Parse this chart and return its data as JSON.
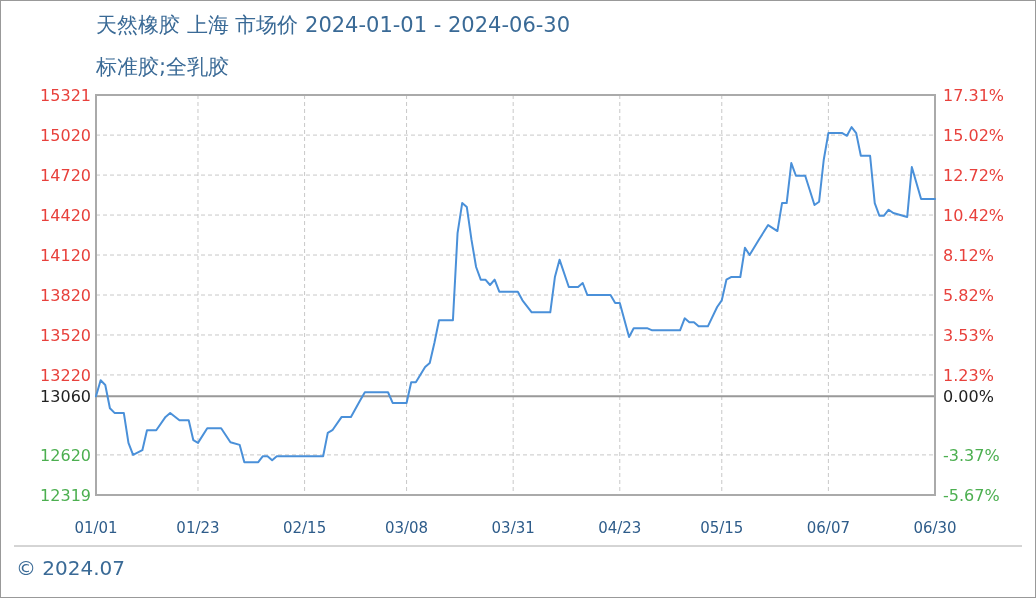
{
  "chart_data": {
    "type": "line",
    "title": "天然橡胶 上海 市场价 2024-01-01 - 2024-06-30",
    "subtitle": "标准胶;全乳胶",
    "annotations": [
      "© 2024.07"
    ],
    "x": [
      "2024-01-01",
      "2024-01-02",
      "2024-01-03",
      "2024-01-04",
      "2024-01-05",
      "2024-01-07",
      "2024-01-08",
      "2024-01-09",
      "2024-01-11",
      "2024-01-12",
      "2024-01-14",
      "2024-01-16",
      "2024-01-17",
      "2024-01-19",
      "2024-01-21",
      "2024-01-22",
      "2024-01-23",
      "2024-01-25",
      "2024-01-28",
      "2024-01-30",
      "2024-02-01",
      "2024-02-02",
      "2024-02-05",
      "2024-02-06",
      "2024-02-07",
      "2024-02-08",
      "2024-02-09",
      "2024-02-19",
      "2024-02-20",
      "2024-02-21",
      "2024-02-23",
      "2024-02-25",
      "2024-02-27",
      "2024-02-28",
      "2024-03-04",
      "2024-03-05",
      "2024-03-08",
      "2024-03-09",
      "2024-03-10",
      "2024-03-12",
      "2024-03-13",
      "2024-03-14",
      "2024-03-15",
      "2024-03-18",
      "2024-03-19",
      "2024-03-20",
      "2024-03-21",
      "2024-03-22",
      "2024-03-23",
      "2024-03-24",
      "2024-03-25",
      "2024-03-26",
      "2024-03-27",
      "2024-03-28",
      "2024-04-01",
      "2024-04-02",
      "2024-04-04",
      "2024-04-08",
      "2024-04-09",
      "2024-04-10",
      "2024-04-12",
      "2024-04-14",
      "2024-04-15",
      "2024-04-16",
      "2024-04-21",
      "2024-04-22",
      "2024-04-23",
      "2024-04-25",
      "2024-04-26",
      "2024-04-29",
      "2024-04-30",
      "2024-05-06",
      "2024-05-07",
      "2024-05-08",
      "2024-05-09",
      "2024-05-10",
      "2024-05-12",
      "2024-05-14",
      "2024-05-15",
      "2024-05-16",
      "2024-05-17",
      "2024-05-19",
      "2024-05-20",
      "2024-05-21",
      "2024-05-23",
      "2024-05-25",
      "2024-05-27",
      "2024-05-28",
      "2024-05-29",
      "2024-05-30",
      "2024-05-31",
      "2024-06-02",
      "2024-06-04",
      "2024-06-05",
      "2024-06-06",
      "2024-06-07",
      "2024-06-10",
      "2024-06-11",
      "2024-06-12",
      "2024-06-13",
      "2024-06-14",
      "2024-06-16",
      "2024-06-17",
      "2024-06-18",
      "2024-06-19",
      "2024-06-20",
      "2024-06-21",
      "2024-06-24",
      "2024-06-25",
      "2024-06-26",
      "2024-06-27",
      "2024-06-30"
    ],
    "series": [
      {
        "color": "#4a90d9",
        "values": [
          13060,
          13180,
          13145,
          12970,
          12935,
          12935,
          12710,
          12620,
          12655,
          12805,
          12805,
          12905,
          12935,
          12880,
          12880,
          12730,
          12710,
          12820,
          12820,
          12715,
          12695,
          12565,
          12565,
          12610,
          12610,
          12580,
          12610,
          12610,
          12785,
          12805,
          12905,
          12905,
          13030,
          13090,
          13090,
          13010,
          13010,
          13165,
          13165,
          13280,
          13310,
          13460,
          13630,
          13630,
          14285,
          14510,
          14480,
          14235,
          14030,
          13935,
          13935,
          13895,
          13935,
          13845,
          13845,
          13780,
          13690,
          13690,
          13955,
          14085,
          13880,
          13880,
          13910,
          13820,
          13820,
          13760,
          13760,
          13505,
          13570,
          13570,
          13555,
          13555,
          13645,
          13615,
          13615,
          13585,
          13585,
          13730,
          13780,
          13935,
          13955,
          13955,
          14175,
          14120,
          14235,
          14345,
          14300,
          14510,
          14510,
          14810,
          14715,
          14715,
          14495,
          14520,
          14835,
          15035,
          15035,
          15015,
          15080,
          15035,
          14865,
          14865,
          14510,
          14415,
          14415,
          14460,
          14435,
          14405,
          14780,
          14660,
          14540,
          14540
        ]
      }
    ],
    "xlim": [
      "2024-01-01",
      "2024-06-30"
    ],
    "xticks": [
      {
        "value": "2024-01-01",
        "label": "01/01"
      },
      {
        "value": "2024-01-23",
        "label": "01/23"
      },
      {
        "value": "2024-02-15",
        "label": "02/15"
      },
      {
        "value": "2024-03-08",
        "label": "03/08"
      },
      {
        "value": "2024-03-31",
        "label": "03/31"
      },
      {
        "value": "2024-04-23",
        "label": "04/23"
      },
      {
        "value": "2024-05-15",
        "label": "05/15"
      },
      {
        "value": "2024-06-07",
        "label": "06/07"
      },
      {
        "value": "2024-06-30",
        "label": "06/30"
      }
    ],
    "ylim": [
      12319,
      15321
    ],
    "yticks": [
      15321,
      15020,
      14720,
      14420,
      14120,
      13820,
      13520,
      13220,
      13060,
      12620,
      12319
    ],
    "y2lim": [
      -5.67,
      17.31
    ],
    "y2ticks": [
      {
        "value": 17.31,
        "label": "17.31%"
      },
      {
        "value": 15.02,
        "label": "15.02%"
      },
      {
        "value": 12.72,
        "label": "12.72%"
      },
      {
        "value": 10.42,
        "label": "10.42%"
      },
      {
        "value": 8.12,
        "label": "8.12%"
      },
      {
        "value": 5.82,
        "label": "5.82%"
      },
      {
        "value": 3.53,
        "label": "3.53%"
      },
      {
        "value": 1.23,
        "label": "1.23%"
      },
      {
        "value": 0,
        "label": "0.00%"
      },
      {
        "value": -3.37,
        "label": "-3.37%"
      },
      {
        "value": -5.67,
        "label": "-5.67%"
      }
    ],
    "grid": true,
    "ref_lines": [
      {
        "axis": "y",
        "value": 13060,
        "color": "#999999"
      }
    ]
  }
}
